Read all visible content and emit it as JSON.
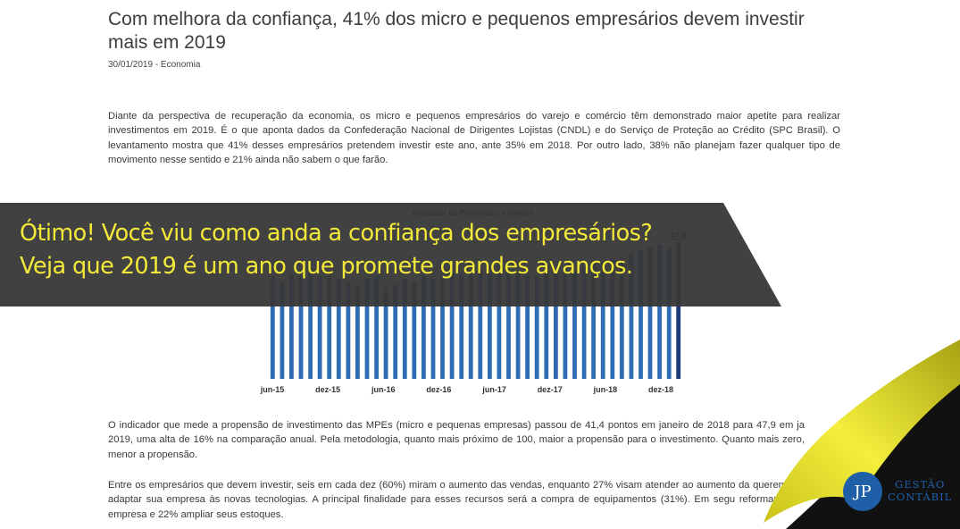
{
  "article": {
    "title": "Com melhora da confiança, 41% dos micro e pequenos empresários devem investir mais em 2019",
    "meta": "30/01/2019 - Economia",
    "p1": "Diante da perspectiva de recuperação da economia, os micro e pequenos empresários do varejo e comércio têm demonstrado maior apetite para realizar investimentos em 2019. É o que aponta dados da Confederação Nacional de Dirigentes Lojistas (CNDL) e do Serviço de Proteção ao Crédito (SPC Brasil). O levantamento mostra que 41% desses empresários pretendem investir este ano, ante 35% em 2018. Por outro lado, 38% não planejam fazer qualquer tipo de movimento nesse sentido e 21% ainda não sabem o que farão.",
    "p2": "O indicador que mede a propensão de investimento das MPEs (micro e pequenas empresas) passou de 41,4 pontos em janeiro de 2018 para 47,9 em ja 2019, uma alta de 16% na comparação anual. Pela metodologia, quanto mais próximo de 100, maior a propensão para o investimento. Quanto mais zero, menor a propensão.",
    "p3": "Entre os empresários que devem investir, seis em cada dez (60%) miram o aumento das vendas, enquanto 27% visam atender ao aumento da querem adaptar sua empresa às novas tecnologias. A principal finalidade para esses recursos será a compra de equipamentos (31%). Em segu reformar a empresa e 22% ampliar seus estoques."
  },
  "chart_data": {
    "type": "bar",
    "title": "Indicador de Propensão a Investir",
    "tick_labels": [
      "jun-15",
      "dez-15",
      "jun-16",
      "dez-16",
      "jun-17",
      "dez-17",
      "jun-18",
      "dez-18"
    ],
    "last_value_label": "47,9",
    "values": [
      36,
      34,
      37,
      36,
      37,
      36,
      36,
      35,
      34,
      33,
      35,
      36,
      32,
      33,
      35,
      34,
      36,
      35,
      36,
      37,
      37,
      37,
      38,
      37,
      38,
      38,
      37,
      36,
      36,
      37,
      37,
      38,
      38,
      39,
      40,
      41,
      42,
      43,
      44,
      45,
      46,
      47,
      46,
      47.9
    ],
    "ylim": [
      0,
      55
    ],
    "bar_color": "#2e6db4",
    "last_bar_color": "#1b3a78"
  },
  "banner": {
    "line1": "Ótimo! Você viu como anda a confiança dos empresários?",
    "line2": "Veja que 2019 é um ano que promete grandes avanços."
  },
  "logo": {
    "mark": "JP",
    "line1": "GESTÃO",
    "line2": "CONTÁBIL"
  }
}
